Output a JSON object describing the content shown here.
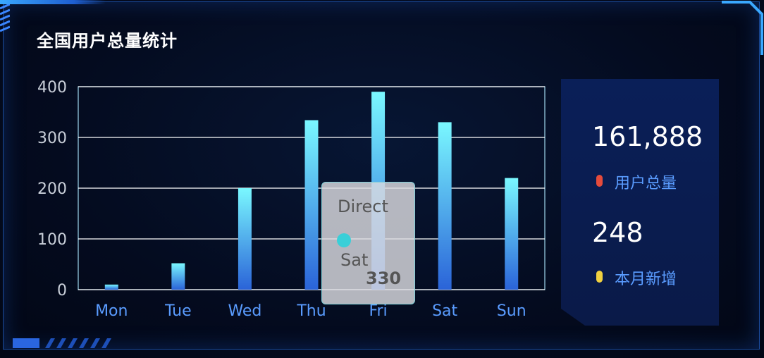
{
  "title": "全国用户总量统计",
  "chart_data": {
    "type": "bar",
    "categories": [
      "Mon",
      "Tue",
      "Wed",
      "Thu",
      "Fri",
      "Sat",
      "Sun"
    ],
    "series": [
      {
        "name": "Direct",
        "values": [
          10,
          52,
          200,
          334,
          390,
          330,
          220
        ]
      }
    ],
    "ylim": [
      0,
      400
    ],
    "yticks": [
      0,
      100,
      200,
      300,
      400
    ],
    "grid": true,
    "colors": {
      "bar_top": "#7af8ff",
      "bar_bottom": "#2a63d8",
      "grid": "#ffffff",
      "axis_text": "#ffffff",
      "cat_text": "#5a9cff"
    }
  },
  "tooltip": {
    "series": "Direct",
    "category": "Sat",
    "value": "330"
  },
  "stats": [
    {
      "value": "161,888",
      "label": "用户总量",
      "color": "#e54b3c"
    },
    {
      "value": "248",
      "label": "本月新增",
      "color": "#f0d040"
    }
  ]
}
